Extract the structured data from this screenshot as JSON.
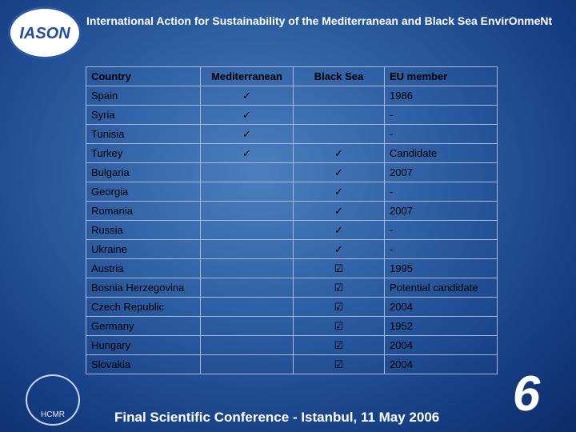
{
  "header": {
    "logo": "IASON",
    "title": "International Action for Sustainability of the Mediterranean and Black Sea EnvirOnmeNt"
  },
  "table": {
    "columns": [
      "Country",
      "Mediterranean",
      "Black Sea",
      "EU member"
    ],
    "rows": [
      [
        "Spain",
        "✓",
        null,
        "1986"
      ],
      [
        "Syria",
        "✓",
        null,
        "-"
      ],
      [
        "Tunisia",
        "✓",
        null,
        "-"
      ],
      [
        "Turkey",
        "✓",
        "✓",
        "Candidate"
      ],
      [
        "Bulgaria",
        null,
        "✓",
        "2007"
      ],
      [
        "Georgia",
        null,
        "✓",
        "-"
      ],
      [
        "Romania",
        null,
        "✓",
        "2007"
      ],
      [
        "Russia",
        null,
        "✓",
        "-"
      ],
      [
        "Ukraine",
        null,
        "✓",
        "-"
      ],
      [
        "Austria",
        null,
        "☑",
        "1995"
      ],
      [
        "Bosnia Herzegovina",
        null,
        "☑",
        "Potential candidate"
      ],
      [
        "Czech Republic",
        null,
        "☑",
        "2004"
      ],
      [
        "Germany",
        null,
        "☑",
        "1952"
      ],
      [
        "Hungary",
        null,
        "☑",
        "2004"
      ],
      [
        "Slovakia",
        null,
        "☑",
        "2004"
      ]
    ]
  },
  "footer": {
    "left_logo": "HCMR",
    "text": "Final Scientific Conference - Istanbul, 11 May 2006",
    "right_logo": "6"
  }
}
